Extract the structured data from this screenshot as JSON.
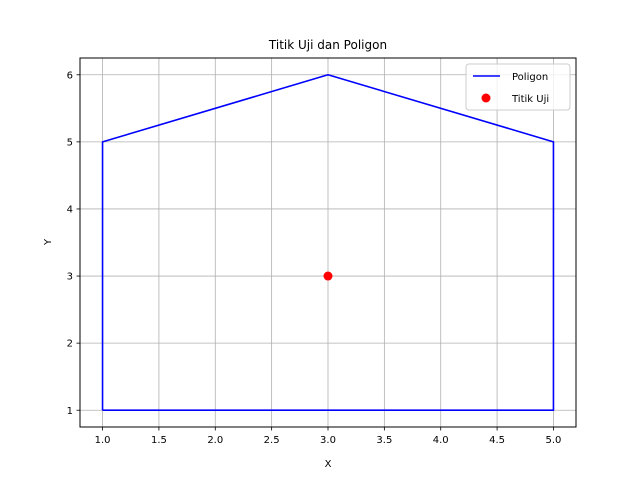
{
  "chart_data": {
    "type": "line",
    "title": "Titik Uji dan Poligon",
    "xlabel": "X",
    "ylabel": "Y",
    "xlim": [
      0.8,
      5.2
    ],
    "ylim": [
      0.75,
      6.25
    ],
    "xticks": [
      1.0,
      1.5,
      2.0,
      2.5,
      3.0,
      3.5,
      4.0,
      4.5,
      5.0
    ],
    "xtick_labels": [
      "1.0",
      "1.5",
      "2.0",
      "2.5",
      "3.0",
      "3.5",
      "4.0",
      "4.5",
      "5.0"
    ],
    "yticks": [
      1,
      2,
      3,
      4,
      5,
      6
    ],
    "ytick_labels": [
      "1",
      "2",
      "3",
      "4",
      "5",
      "6"
    ],
    "grid": true,
    "legend_position": "top-right",
    "series": [
      {
        "name": "Poligon",
        "kind": "line",
        "color": "#0000ff",
        "points": [
          [
            1,
            1
          ],
          [
            5,
            1
          ],
          [
            5,
            5
          ],
          [
            3,
            6
          ],
          [
            1,
            5
          ],
          [
            1,
            1
          ]
        ]
      },
      {
        "name": "Titik Uji",
        "kind": "scatter",
        "color": "#ff0000",
        "points": [
          [
            3,
            3
          ]
        ]
      }
    ]
  }
}
